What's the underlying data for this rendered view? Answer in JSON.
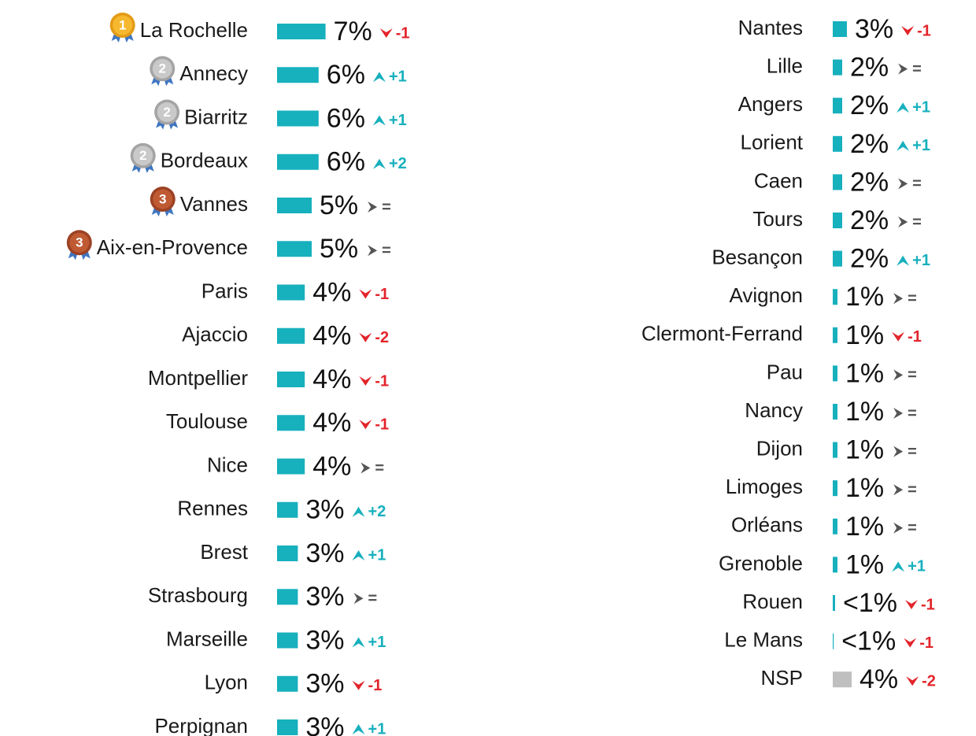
{
  "chart_data": [
    {
      "type": "bar",
      "categories": [
        "La Rochelle",
        "Annecy",
        "Biarritz",
        "Bordeaux",
        "Vannes",
        "Aix-en-Provence",
        "Paris",
        "Ajaccio",
        "Montpellier",
        "Toulouse",
        "Nice",
        "Rennes",
        "Brest",
        "Strasbourg",
        "Marseille",
        "Lyon",
        "Perpignan"
      ],
      "values": [
        7,
        6,
        6,
        6,
        5,
        5,
        4,
        4,
        4,
        4,
        4,
        3,
        3,
        3,
        3,
        3,
        3
      ],
      "value_labels": [
        "7%",
        "6%",
        "6%",
        "6%",
        "5%",
        "5%",
        "4%",
        "4%",
        "4%",
        "4%",
        "4%",
        "3%",
        "3%",
        "3%",
        "3%",
        "3%",
        "3%"
      ],
      "rank_changes": [
        "-1",
        "+1",
        "+1",
        "+2",
        "=",
        "=",
        "-1",
        "-2",
        "-1",
        "-1",
        "=",
        "+2",
        "+1",
        "=",
        "+1",
        "-1",
        "+1"
      ],
      "medals": [
        1,
        2,
        2,
        2,
        3,
        3,
        null,
        null,
        null,
        null,
        null,
        null,
        null,
        null,
        null,
        null,
        null
      ],
      "colors": [
        "#17b0bd",
        "#17b0bd",
        "#17b0bd",
        "#17b0bd",
        "#17b0bd",
        "#17b0bd",
        "#17b0bd",
        "#17b0bd",
        "#17b0bd",
        "#17b0bd",
        "#17b0bd",
        "#17b0bd",
        "#17b0bd",
        "#17b0bd",
        "#17b0bd",
        "#17b0bd",
        "#17b0bd"
      ]
    },
    {
      "type": "bar",
      "categories": [
        "Nantes",
        "Lille",
        "Angers",
        "Lorient",
        "Caen",
        "Tours",
        "Besançon",
        "Avignon",
        "Clermont-Ferrand",
        "Pau",
        "Nancy",
        "Dijon",
        "Limoges",
        "Orléans",
        "Grenoble",
        "Rouen",
        "Le Mans",
        "NSP"
      ],
      "values": [
        3,
        2,
        2,
        2,
        2,
        2,
        2,
        1,
        1,
        1,
        1,
        1,
        1,
        1,
        1,
        0.5,
        0.2,
        4
      ],
      "value_labels": [
        "3%",
        "2%",
        "2%",
        "2%",
        "2%",
        "2%",
        "2%",
        "1%",
        "1%",
        "1%",
        "1%",
        "1%",
        "1%",
        "1%",
        "1%",
        "<1%",
        "<1%",
        "4%"
      ],
      "rank_changes": [
        "-1",
        "=",
        "+1",
        "+1",
        "=",
        "=",
        "+1",
        "=",
        "-1",
        "=",
        "=",
        "=",
        "=",
        "=",
        "+1",
        "-1",
        "-1",
        "-2"
      ],
      "colors": [
        "#17b0bd",
        "#17b0bd",
        "#17b0bd",
        "#17b0bd",
        "#17b0bd",
        "#17b0bd",
        "#17b0bd",
        "#17b0bd",
        "#17b0bd",
        "#17b0bd",
        "#17b0bd",
        "#17b0bd",
        "#17b0bd",
        "#17b0bd",
        "#17b0bd",
        "#17b0bd",
        "#17b0bd",
        "#bfbfbf"
      ]
    }
  ]
}
